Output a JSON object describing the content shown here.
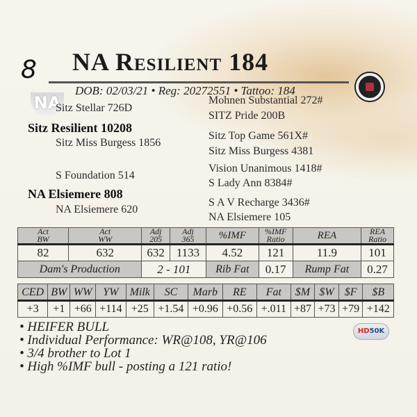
{
  "lot": "8",
  "title": "NA Resilient 184",
  "info": "DOB: 02/03/21 • Reg: 20272551 • Tattoo: 184",
  "logo": "NA",
  "pedigree": {
    "sire": "Sitz Resilient 10208",
    "sire_sire": "Sitz Stellar 726D",
    "sire_dam": "Sitz Miss Burgess 1856",
    "dam": "NA Elsiemere 808",
    "dam_sire": "S Foundation 514",
    "dam_dam": "NA Elsiemere 620",
    "gp": [
      "Mohnen Substantial 272#",
      "SITZ Pride 200B",
      "Sitz Top Game 561X#",
      "Sitz Miss Burgess 4381",
      "Vision Unanimous 1418#",
      "S Lady Ann 8384#",
      "S A V Recharge 3436#",
      "NA Elsiemere 105"
    ]
  },
  "perf": {
    "headers": [
      [
        "Act",
        "BW"
      ],
      [
        "Act",
        "WW"
      ],
      [
        "Adj",
        "205"
      ],
      [
        "Adj",
        "365"
      ],
      [
        "%IMF",
        ""
      ],
      [
        "%IMF",
        "Ratio"
      ],
      [
        "REA",
        ""
      ],
      [
        "REA",
        "Ratio"
      ]
    ],
    "values": [
      "82",
      "632",
      "632",
      "1133",
      "4.52",
      "121",
      "11.9",
      "101"
    ],
    "dams_production_label": "Dam's Production",
    "dams_production": "2 - 101",
    "rib_fat_label": "Rib Fat",
    "rib_fat": "0.17",
    "rump_fat_label": "Rump Fat",
    "rump_fat": "0.27"
  },
  "epd": {
    "headers": [
      "CED",
      "BW",
      "WW",
      "YW",
      "Milk",
      "SC",
      "Marb",
      "RE",
      "Fat",
      "$M",
      "$W",
      "$F",
      "$B"
    ],
    "values": [
      "+3",
      "+1",
      "+66",
      "+114",
      "+25",
      "+1.54",
      "+0.96",
      "+0.56",
      "+.011",
      "+87",
      "+73",
      "+79",
      "+142"
    ]
  },
  "notes": [
    "• HEIFER BULL",
    "• Individual Performance: WR@108, YR@106",
    "• 3/4 brother to Lot 1",
    "• High %IMF bull - posting a 121 ratio!"
  ],
  "hd50k": {
    "hd": "HD",
    "k": "50K"
  }
}
